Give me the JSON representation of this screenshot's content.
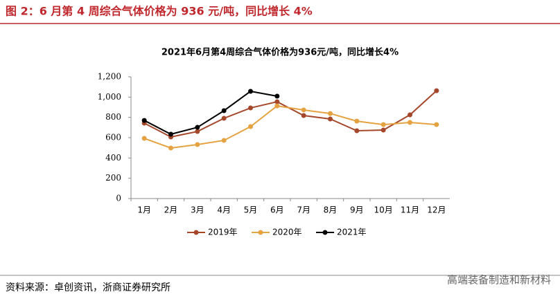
{
  "header": {
    "title": "图 2：6 月第 4 周综合气体价格为 936 元/吨，同比增长 4%"
  },
  "chart_data": {
    "type": "line",
    "title": "2021年6月第4周综合气体价格为936元/吨，同比增长4%",
    "categories": [
      "1月",
      "2月",
      "3月",
      "4月",
      "5月",
      "6月",
      "7月",
      "8月",
      "9月",
      "10月",
      "11月",
      "12月"
    ],
    "series": [
      {
        "name": "2019年",
        "color": "#a5472a",
        "values": [
          743,
          607,
          661,
          791,
          893,
          954,
          818,
          784,
          668,
          675,
          825,
          1063
        ]
      },
      {
        "name": "2020年",
        "color": "#e5a240",
        "values": [
          593,
          498,
          532,
          573,
          709,
          913,
          873,
          838,
          763,
          729,
          750,
          729
        ]
      },
      {
        "name": "2021年",
        "color": "#000000",
        "values": [
          770,
          634,
          702,
          866,
          1057,
          1009,
          null,
          null,
          null,
          null,
          null,
          null
        ]
      }
    ],
    "ylim": [
      0,
      1200
    ],
    "yticks": [
      0,
      200,
      400,
      600,
      800,
      {
        "value": 1000,
        "label": "1,000"
      },
      {
        "value": 1200,
        "label": "1,200"
      }
    ],
    "grid": false,
    "legend": "bottom"
  },
  "footer": {
    "source": "资料来源：卓创资讯，浙商证券研究所",
    "watermark": "高端装备制造和新材料"
  }
}
